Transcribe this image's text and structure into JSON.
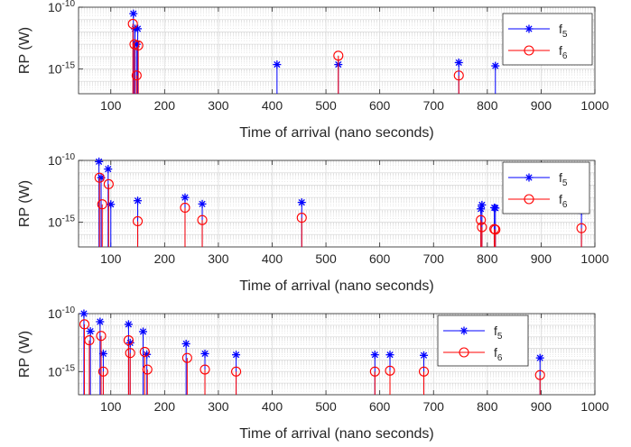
{
  "colors": {
    "f5": "#0000ff",
    "f6": "#ff0000",
    "grid": "#dcdcdc",
    "axis": "#262626"
  },
  "chart_data": [
    {
      "type": "stem",
      "xlabel": "Time of arrival (nano seconds)",
      "ylabel": "RP (W)",
      "xlim": [
        40,
        1000
      ],
      "ylim": [
        1e-17,
        1e-10
      ],
      "yscale": "log",
      "xticks": [
        100,
        200,
        300,
        400,
        500,
        600,
        700,
        800,
        900,
        1000
      ],
      "yticks": [
        "10^-10",
        "10^-15"
      ],
      "grid": true,
      "legend_position": "top-right",
      "series": [
        {
          "name": "f5",
          "marker": "asterisk",
          "x": [
            142,
            145,
            148,
            150,
            409,
            523,
            747,
            815
          ],
          "y": [
            3e-11,
            1.8e-12,
            1e-13,
            1.8e-12,
            2.3e-15,
            2.3e-15,
            3.3e-15,
            1.8e-15
          ]
        },
        {
          "name": "f6",
          "marker": "circle",
          "x": [
            141,
            144,
            148,
            151,
            523,
            747
          ],
          "y": [
            4.5e-12,
            1e-13,
            3e-16,
            8e-14,
            1.2e-14,
            3e-16
          ]
        }
      ]
    },
    {
      "type": "stem",
      "xlabel": "Time of arrival (nano seconds)",
      "ylabel": "RP (W)",
      "xlim": [
        40,
        1000
      ],
      "ylim": [
        1e-17,
        1e-10
      ],
      "yscale": "log",
      "xticks": [
        100,
        200,
        300,
        400,
        500,
        600,
        700,
        800,
        900,
        1000
      ],
      "yticks": [
        "10^-10",
        "10^-15"
      ],
      "grid": true,
      "legend_position": "top-right",
      "series": [
        {
          "name": "f5",
          "marker": "asterisk",
          "x": [
            78,
            82,
            95,
            100,
            150,
            238,
            270,
            455,
            788,
            790,
            813,
            815,
            975
          ],
          "y": [
            8e-11,
            4e-12,
            2e-11,
            2.8e-14,
            5.5e-14,
            1e-13,
            3e-14,
            4e-14,
            1.2e-14,
            2.5e-14,
            1.5e-14,
            1.4e-14,
            8e-15
          ]
        },
        {
          "name": "f6",
          "marker": "circle",
          "x": [
            79,
            84,
            96,
            150,
            238,
            270,
            455,
            788,
            790,
            813,
            815,
            975
          ],
          "y": [
            4e-12,
            2.8e-14,
            1.2e-12,
            1.2e-15,
            1.5e-14,
            1.5e-15,
            2.3e-15,
            1.5e-15,
            4e-16,
            2.8e-16,
            2.5e-16,
            3.3e-16
          ]
        }
      ]
    },
    {
      "type": "stem",
      "xlabel": "Time of arrival (nano seconds)",
      "ylabel": "RP (W)",
      "xlim": [
        40,
        1000
      ],
      "ylim": [
        1e-17,
        1e-10
      ],
      "yscale": "log",
      "xticks": [
        100,
        200,
        300,
        400,
        500,
        600,
        700,
        800,
        900,
        1000
      ],
      "yticks": [
        "10^-10",
        "10^-15"
      ],
      "grid": true,
      "legend_position": "top-right",
      "series": [
        {
          "name": "f5",
          "marker": "asterisk",
          "x": [
            50,
            62,
            80,
            86,
            133,
            136,
            160,
            167,
            240,
            275,
            333,
            591,
            619,
            682,
            898
          ],
          "y": [
            1e-10,
            3e-12,
            2e-11,
            3.5e-14,
            1.2e-11,
            3e-13,
            2.8e-12,
            3e-14,
            2.5e-13,
            3.5e-14,
            2.8e-14,
            2.8e-14,
            2.8e-14,
            2.5e-14,
            1.5e-14
          ]
        },
        {
          "name": "f6",
          "marker": "circle",
          "x": [
            51,
            60,
            82,
            86,
            133,
            136,
            163,
            168,
            242,
            275,
            333,
            591,
            619,
            682,
            898
          ],
          "y": [
            1.2e-11,
            5e-13,
            1.2e-12,
            1e-15,
            5e-13,
            4e-14,
            5e-14,
            1.5e-15,
            1.5e-14,
            1.5e-15,
            1e-15,
            1e-15,
            1.2e-15,
            1e-15,
            5e-16
          ]
        }
      ]
    }
  ]
}
